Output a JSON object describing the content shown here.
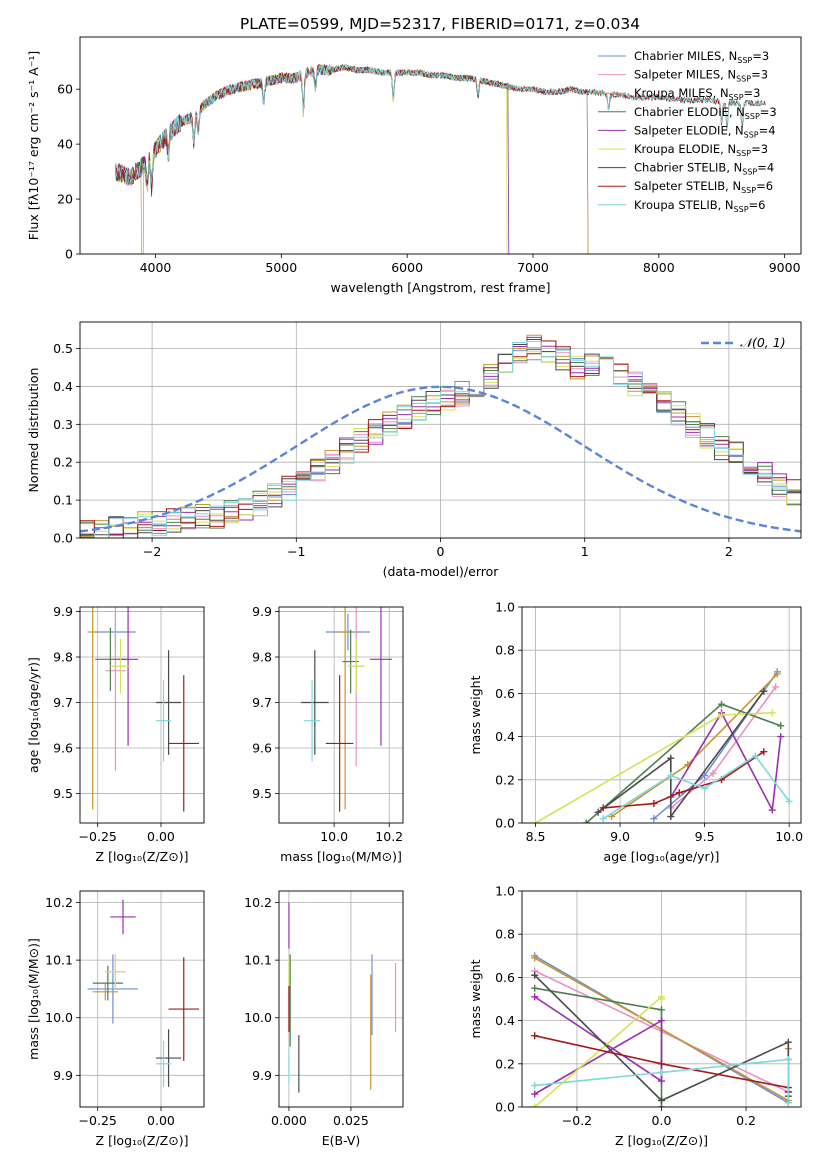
{
  "figure_title": "PLATE=0599, MJD=52317, FIBERID=0171, z=0.034",
  "palette": [
    "#6f8fd6",
    "#ea8fc8",
    "#c8962c",
    "#4f7f4f",
    "#9a2fb0",
    "#d6e25a",
    "#4a4a4a",
    "#a41b1b",
    "#7fd7dc"
  ],
  "chart_data": [
    {
      "id": "spectrum",
      "type": "line",
      "title": "PLATE=0599, MJD=52317, FIBERID=0171, z=0.034",
      "xlabel": "wavelength [Angstrom, rest frame]",
      "ylabel": "Flux [fλ10⁻¹⁷ erg cm⁻² s⁻¹ A⁻¹]",
      "xlim": [
        3400,
        9130
      ],
      "ylim": [
        0,
        79
      ],
      "xticks": [
        4000,
        5000,
        6000,
        7000,
        8000,
        9000
      ],
      "yticks": [
        0,
        20,
        40,
        60
      ],
      "grid": false,
      "legend_position": "top-right",
      "continuum": [
        [
          3680,
          30
        ],
        [
          3800,
          28
        ],
        [
          3900,
          32
        ],
        [
          4000,
          38
        ],
        [
          4100,
          44
        ],
        [
          4200,
          48
        ],
        [
          4300,
          50
        ],
        [
          4400,
          55
        ],
        [
          4500,
          58
        ],
        [
          4600,
          60
        ],
        [
          4700,
          61
        ],
        [
          4800,
          62
        ],
        [
          4900,
          63
        ],
        [
          5000,
          64
        ],
        [
          5100,
          64
        ],
        [
          5200,
          66
        ],
        [
          5300,
          67
        ],
        [
          5400,
          67
        ],
        [
          5500,
          68
        ],
        [
          5600,
          67
        ],
        [
          5700,
          67
        ],
        [
          5800,
          66
        ],
        [
          5900,
          66
        ],
        [
          6000,
          66
        ],
        [
          6100,
          66
        ],
        [
          6200,
          65
        ],
        [
          6300,
          65
        ],
        [
          6400,
          64
        ],
        [
          6500,
          64
        ],
        [
          6600,
          63
        ],
        [
          6700,
          62
        ],
        [
          6800,
          61
        ],
        [
          6900,
          60
        ],
        [
          7000,
          60
        ],
        [
          7100,
          59
        ],
        [
          7200,
          59
        ],
        [
          7300,
          60
        ],
        [
          7400,
          59
        ],
        [
          7500,
          59
        ],
        [
          7600,
          58
        ],
        [
          7700,
          58
        ],
        [
          7800,
          57
        ],
        [
          7900,
          57
        ],
        [
          8000,
          57
        ],
        [
          8200,
          56
        ],
        [
          8400,
          56
        ],
        [
          8600,
          55
        ],
        [
          8800,
          55
        ],
        [
          8850,
          55
        ]
      ],
      "absorption_features": [
        [
          3934,
          10
        ],
        [
          3968,
          12
        ],
        [
          4102,
          8
        ],
        [
          4305,
          10
        ],
        [
          4340,
          8
        ],
        [
          4861,
          8
        ],
        [
          5175,
          14
        ],
        [
          5270,
          6
        ],
        [
          5890,
          10
        ],
        [
          6563,
          6
        ],
        [
          7600,
          5
        ],
        [
          8498,
          8
        ],
        [
          8542,
          10
        ],
        [
          8662,
          9
        ]
      ],
      "series": [
        {
          "name": "Chabrier MILES, N_SSP=3",
          "end": 7430,
          "dropout": null
        },
        {
          "name": "Salpeter MILES, N_SSP=3",
          "end": 7430,
          "dropout": null
        },
        {
          "name": "Kroupa MILES, N_SSP=3",
          "end": 7430,
          "dropout": [
            3890,
            3905
          ]
        },
        {
          "name": "Chabrier ELODIE, N_SSP=3",
          "end": 6800,
          "dropout": null
        },
        {
          "name": "Salpeter ELODIE, N_SSP=4",
          "end": 6800,
          "dropout": null
        },
        {
          "name": "Kroupa ELODIE, N_SSP=3",
          "end": 6800,
          "dropout": [
            6790,
            6800
          ]
        },
        {
          "name": "Chabrier STELIB, N_SSP=4",
          "end": 8850,
          "dropout": null
        },
        {
          "name": "Salpeter STELIB, N_SSP=6",
          "end": 8850,
          "dropout": null
        },
        {
          "name": "Kroupa STELIB, N_SSP=6",
          "end": 8850,
          "dropout": null
        }
      ],
      "legend": [
        {
          "pre": "Chabrier MILES, N",
          "sub": "SSP",
          "post": "=3"
        },
        {
          "pre": "Salpeter MILES, N",
          "sub": "SSP",
          "post": "=3"
        },
        {
          "pre": "Kroupa MILES, N",
          "sub": "SSP",
          "post": "=3"
        },
        {
          "pre": "Chabrier ELODIE, N",
          "sub": "SSP",
          "post": "=3"
        },
        {
          "pre": "Salpeter ELODIE, N",
          "sub": "SSP",
          "post": "=4"
        },
        {
          "pre": "Kroupa ELODIE, N",
          "sub": "SSP",
          "post": "=3"
        },
        {
          "pre": "Chabrier STELIB, N",
          "sub": "SSP",
          "post": "=4"
        },
        {
          "pre": "Salpeter STELIB, N",
          "sub": "SSP",
          "post": "=6"
        },
        {
          "pre": "Kroupa STELIB, N",
          "sub": "SSP",
          "post": "=6"
        }
      ]
    },
    {
      "id": "residuals",
      "type": "histogram",
      "xlabel": "(data-model)/error",
      "ylabel": "Normed distribution",
      "xlim": [
        -2.5,
        2.5
      ],
      "ylim": [
        0,
        0.57
      ],
      "xticks": [
        -2,
        -1,
        0,
        1,
        2
      ],
      "yticks": [
        0.0,
        0.1,
        0.2,
        0.3,
        0.4,
        0.5
      ],
      "grid": true,
      "legend_position": "top-right",
      "reference_curve": {
        "name": "𝒩(0, 1)",
        "mean": 0,
        "sigma": 1,
        "color": "#5b86d6",
        "style": "dashed"
      },
      "bin_width": 0.1,
      "bin_start": -2.5,
      "base_histogram": [
        0.02,
        0.02,
        0.025,
        0.03,
        0.035,
        0.04,
        0.045,
        0.05,
        0.055,
        0.06,
        0.07,
        0.08,
        0.09,
        0.11,
        0.13,
        0.15,
        0.18,
        0.2,
        0.23,
        0.26,
        0.28,
        0.3,
        0.32,
        0.34,
        0.36,
        0.37,
        0.38,
        0.4,
        0.43,
        0.46,
        0.49,
        0.5,
        0.49,
        0.47,
        0.45,
        0.46,
        0.47,
        0.44,
        0.41,
        0.38,
        0.36,
        0.33,
        0.3,
        0.27,
        0.24,
        0.22,
        0.19,
        0.17,
        0.14,
        0.12,
        0.1,
        0.09,
        0.08,
        0.07,
        0.06,
        0.055,
        0.05,
        0.04,
        0.035,
        0.03,
        0.025,
        0.02,
        0.02,
        0.015,
        0.015
      ]
    },
    {
      "id": "age-vs-Z",
      "type": "errorbar",
      "xlabel": "Z [log₁₀(Z/Z⊙)]",
      "ylabel": "age  [log₁₀(age/yr)]",
      "xlim": [
        -0.32,
        0.17
      ],
      "ylim": [
        9.435,
        9.91
      ],
      "xticks": [
        -0.25,
        0.0
      ],
      "yticks": [
        9.5,
        9.6,
        9.7,
        9.8,
        9.9
      ],
      "grid": true,
      "points": [
        {
          "x": -0.18,
          "y": 9.855,
          "xerr": 0.08,
          "yerr": 0.04
        },
        {
          "x": -0.18,
          "y": 9.77,
          "xerr": 0.04,
          "yerr": 0.22
        },
        {
          "x": -0.27,
          "y": 9.855,
          "xerr": 0.02,
          "yerr": 0.39
        },
        {
          "x": -0.2,
          "y": 9.795,
          "xerr": 0.06,
          "yerr": 0.07
        },
        {
          "x": -0.13,
          "y": 9.795,
          "xerr": 0.04,
          "yerr": 0.19
        },
        {
          "x": -0.16,
          "y": 9.78,
          "xerr": 0.04,
          "yerr": 0.06
        },
        {
          "x": 0.03,
          "y": 9.7,
          "xerr": 0.05,
          "yerr": 0.115
        },
        {
          "x": 0.09,
          "y": 9.61,
          "xerr": 0.06,
          "yerr": 0.15
        },
        {
          "x": 0.01,
          "y": 9.66,
          "xerr": 0.03,
          "yerr": 0.09
        }
      ]
    },
    {
      "id": "age-vs-mass",
      "type": "errorbar",
      "xlabel": "mass [log₁₀(M/M⊙)]",
      "ylabel": "",
      "xlim": [
        9.8,
        10.25
      ],
      "ylim": [
        9.435,
        9.91
      ],
      "xticks": [
        10.0,
        10.2
      ],
      "yticks": [
        9.5,
        9.6,
        9.7,
        9.8,
        9.9
      ],
      "grid": true,
      "points": [
        {
          "x": 10.05,
          "y": 9.855,
          "xerr": 0.08,
          "yerr": 0.04
        },
        {
          "x": 10.08,
          "y": 9.78,
          "xerr": 0.03,
          "yerr": 0.22
        },
        {
          "x": 10.04,
          "y": 9.855,
          "xerr": 0.03,
          "yerr": 0.39
        },
        {
          "x": 10.06,
          "y": 9.79,
          "xerr": 0.03,
          "yerr": 0.07
        },
        {
          "x": 10.17,
          "y": 9.795,
          "xerr": 0.04,
          "yerr": 0.19
        },
        {
          "x": 10.08,
          "y": 9.78,
          "xerr": 0.03,
          "yerr": 0.06
        },
        {
          "x": 9.93,
          "y": 9.7,
          "xerr": 0.05,
          "yerr": 0.115
        },
        {
          "x": 10.02,
          "y": 9.61,
          "xerr": 0.05,
          "yerr": 0.15
        },
        {
          "x": 9.92,
          "y": 9.66,
          "xerr": 0.03,
          "yerr": 0.09
        }
      ]
    },
    {
      "id": "mass-weight-vs-age",
      "type": "line",
      "xlabel": "age  [log₁₀(age/yr)]",
      "ylabel": "mass weight",
      "xlim": [
        8.42,
        10.07
      ],
      "ylim": [
        0,
        1.0
      ],
      "xticks": [
        8.5,
        9.0,
        9.5,
        10.0
      ],
      "yticks": [
        0.0,
        0.2,
        0.4,
        0.6,
        0.8,
        1.0
      ],
      "grid": true,
      "series": [
        {
          "x": [
            9.2,
            9.5,
            9.93
          ],
          "y": [
            0.02,
            0.22,
            0.7
          ]
        },
        {
          "x": [
            9.3,
            9.55,
            9.92
          ],
          "y": [
            0.07,
            0.23,
            0.63
          ]
        },
        {
          "x": [
            8.95,
            9.4,
            9.93
          ],
          "y": [
            0.03,
            0.27,
            0.69
          ]
        },
        {
          "x": [
            8.8,
            9.6,
            9.95
          ],
          "y": [
            0.0,
            0.55,
            0.45
          ]
        },
        {
          "x": [
            9.3,
            9.6,
            9.9,
            9.95
          ],
          "y": [
            0.12,
            0.51,
            0.06,
            0.4
          ]
        },
        {
          "x": [
            8.5,
            9.6,
            9.9
          ],
          "y": [
            0.0,
            0.5,
            0.51
          ]
        },
        {
          "x": [
            8.87,
            9.3,
            9.3,
            9.85
          ],
          "y": [
            0.05,
            0.3,
            0.03,
            0.61
          ]
        },
        {
          "x": [
            8.9,
            9.2,
            9.35,
            9.6,
            9.85
          ],
          "y": [
            0.07,
            0.09,
            0.14,
            0.2,
            0.33
          ]
        },
        {
          "x": [
            8.9,
            9.3,
            9.5,
            9.8,
            10.0
          ],
          "y": [
            0.02,
            0.22,
            0.16,
            0.31,
            0.1
          ]
        }
      ]
    },
    {
      "id": "mass-vs-Z",
      "type": "errorbar",
      "xlabel": "Z [log₁₀(Z/Z⊙)]",
      "ylabel": "mass [log₁₀(M/M⊙)]",
      "xlim": [
        -0.32,
        0.17
      ],
      "ylim": [
        9.845,
        10.22
      ],
      "xticks": [
        -0.25,
        0.0
      ],
      "yticks": [
        9.9,
        10.0,
        10.1,
        10.2
      ],
      "grid": true,
      "points": [
        {
          "x": -0.19,
          "y": 10.05,
          "xerr": 0.1,
          "yerr": 0.06
        },
        {
          "x": -0.18,
          "y": 10.08,
          "xerr": 0.04,
          "yerr": 0.03
        },
        {
          "x": -0.22,
          "y": 10.045,
          "xerr": 0.05,
          "yerr": 0.015
        },
        {
          "x": -0.21,
          "y": 10.06,
          "xerr": 0.06,
          "yerr": 0.03
        },
        {
          "x": -0.15,
          "y": 10.175,
          "xerr": 0.05,
          "yerr": 0.03
        },
        {
          "x": -0.18,
          "y": 10.08,
          "xerr": 0.04,
          "yerr": 0.03
        },
        {
          "x": 0.03,
          "y": 9.93,
          "xerr": 0.05,
          "yerr": 0.05
        },
        {
          "x": 0.09,
          "y": 10.015,
          "xerr": 0.06,
          "yerr": 0.09
        },
        {
          "x": 0.01,
          "y": 9.92,
          "xerr": 0.03,
          "yerr": 0.04
        }
      ]
    },
    {
      "id": "mass-vs-EBV",
      "type": "errorbar",
      "xlabel": "E(B-V)",
      "ylabel": "",
      "xlim": [
        -0.004,
        0.046
      ],
      "ylim": [
        9.845,
        10.22
      ],
      "xticks": [
        0.0,
        0.025
      ],
      "yticks": [
        9.9,
        10.0,
        10.1,
        10.2
      ],
      "grid": true,
      "points": [
        {
          "x": 0.0335,
          "y": 10.04,
          "xerr": 0.0,
          "yerr": 0.07
        },
        {
          "x": 0.043,
          "y": 10.035,
          "xerr": 0.0,
          "yerr": 0.06
        },
        {
          "x": 0.033,
          "y": 9.975,
          "xerr": 0.0,
          "yerr": 0.1
        },
        {
          "x": 0.0005,
          "y": 10.03,
          "xerr": 0.0,
          "yerr": 0.08
        },
        {
          "x": 0.0,
          "y": 10.16,
          "xerr": 0.0,
          "yerr": 0.04
        },
        {
          "x": 0.0,
          "y": 10.075,
          "xerr": 0.0,
          "yerr": 0.03
        },
        {
          "x": 0.004,
          "y": 9.92,
          "xerr": 0.0,
          "yerr": 0.05
        },
        {
          "x": 0.0,
          "y": 10.015,
          "xerr": 0.0,
          "yerr": 0.04
        },
        {
          "x": 0.0,
          "y": 9.915,
          "xerr": 0.0,
          "yerr": 0.03
        }
      ]
    },
    {
      "id": "mass-weight-vs-Z",
      "type": "line",
      "xlabel": "Z [log₁₀(Z/Z⊙)]",
      "ylabel": "mass weight",
      "xlim": [
        -0.33,
        0.33
      ],
      "ylim": [
        0,
        1.0
      ],
      "xticks": [
        -0.2,
        0.0,
        0.2
      ],
      "yticks": [
        0.0,
        0.2,
        0.4,
        0.6,
        0.8,
        1.0
      ],
      "grid": true,
      "series": [
        {
          "x": [
            -0.3,
            0.3,
            0.3
          ],
          "y": [
            0.7,
            0.02,
            0.22
          ]
        },
        {
          "x": [
            -0.3,
            0.3,
            0.3
          ],
          "y": [
            0.63,
            0.07,
            0.22
          ]
        },
        {
          "x": [
            -0.3,
            0.3,
            0.3
          ],
          "y": [
            0.69,
            0.03,
            0.27
          ]
        },
        {
          "x": [
            -0.3,
            0.0,
            0.0
          ],
          "y": [
            0.55,
            0.45,
            0.0
          ]
        },
        {
          "x": [
            -0.3,
            0.0,
            0.0,
            -0.3
          ],
          "y": [
            0.06,
            0.4,
            0.12,
            0.51
          ]
        },
        {
          "x": [
            -0.3,
            0.0,
            0.0
          ],
          "y": [
            0.0,
            0.51,
            0.5
          ]
        },
        {
          "x": [
            -0.3,
            0.0,
            0.3,
            0.3
          ],
          "y": [
            0.61,
            0.03,
            0.3,
            0.05
          ]
        },
        {
          "x": [
            -0.3,
            0.0,
            0.3,
            0.3
          ],
          "y": [
            0.33,
            0.2,
            0.09,
            0.07
          ]
        },
        {
          "x": [
            -0.3,
            0.0,
            0.3,
            0.3
          ],
          "y": [
            0.1,
            0.16,
            0.22,
            0.02
          ]
        }
      ]
    }
  ]
}
